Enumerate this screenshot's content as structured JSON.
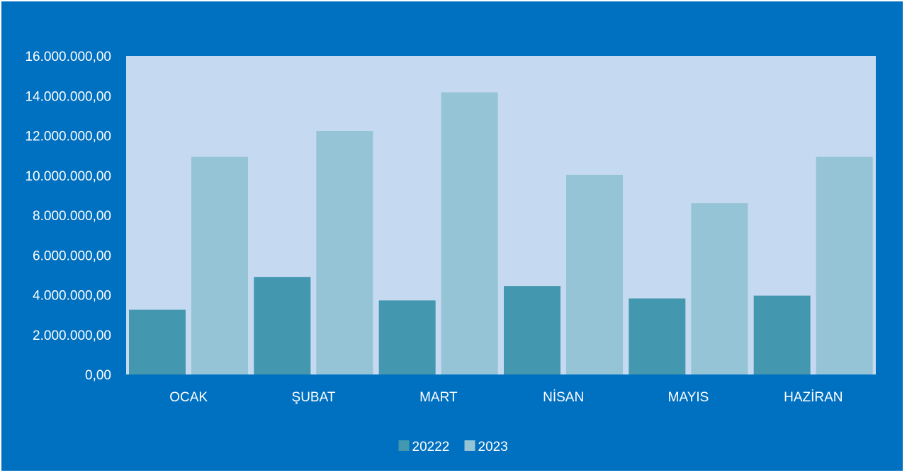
{
  "chart_data": {
    "type": "bar",
    "title": "",
    "xlabel": "",
    "ylabel": "",
    "categories": [
      "OCAK",
      "ŞUBAT",
      "MART",
      "NİSAN",
      "MAYIS",
      "HAZİRAN"
    ],
    "series": [
      {
        "name": "20222",
        "color": "#4398b0",
        "values": [
          3250000,
          4900000,
          3720000,
          4440000,
          3820000,
          3960000
        ]
      },
      {
        "name": "2023",
        "color": "#95c4d6",
        "values": [
          10930000,
          12230000,
          14170000,
          10030000,
          8600000,
          10930000
        ]
      }
    ],
    "ylim": [
      0,
      16000000
    ],
    "yticks": [
      "0,00",
      "2.000.000,00",
      "4.000.000,00",
      "6.000.000,00",
      "8.000.000,00",
      "10.000.000,00",
      "12.000.000,00",
      "14.000.000,00",
      "16.000.000,00"
    ],
    "grid": false,
    "legend": "bottom",
    "background_color": "#0070c0",
    "plot_area_color": "#c5d9f1",
    "text_color": "#ffffff"
  }
}
